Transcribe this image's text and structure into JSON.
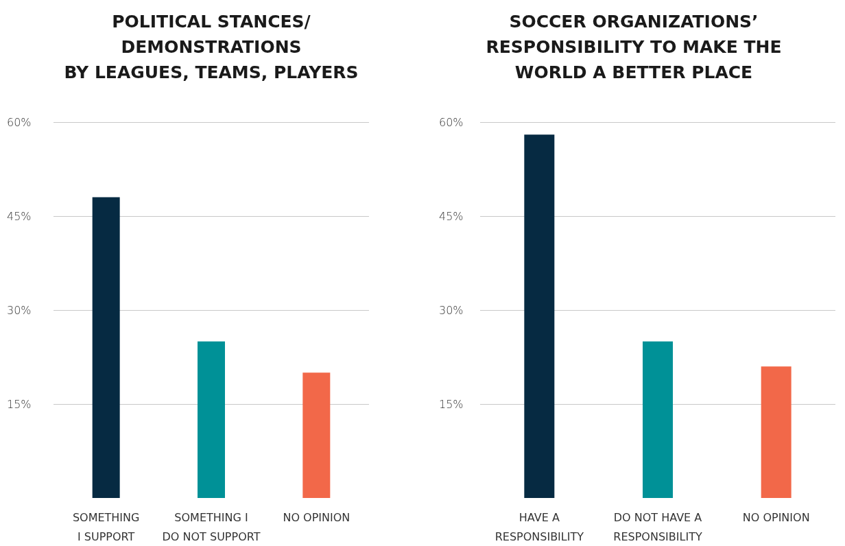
{
  "chart_data": [
    {
      "type": "bar",
      "title": "POLITICAL STANCES/\nDEMONSTRATIONS\nBY LEAGUES, TEAMS, PLAYERS",
      "categories": [
        "SOMETHING\nI SUPPORT",
        "SOMETHING I\nDO NOT SUPPORT",
        "NO OPINION"
      ],
      "values": [
        48,
        25,
        20
      ],
      "colors": [
        "#062a42",
        "#009197",
        "#f26849"
      ],
      "ylim": [
        0,
        60
      ],
      "yticks": [
        {
          "value": 15,
          "label": "15%"
        },
        {
          "value": 30,
          "label": "30%"
        },
        {
          "value": 45,
          "label": "45%"
        },
        {
          "value": 60,
          "label": "60%"
        }
      ],
      "grid": "y"
    },
    {
      "type": "bar",
      "title": "SOCCER ORGANIZATIONS’\nRESPONSIBILITY TO MAKE THE\nWORLD A BETTER PLACE",
      "categories": [
        "HAVE A\nRESPONSIBILITY",
        "DO NOT HAVE A\nRESPONSIBILITY",
        "NO OPINION"
      ],
      "values": [
        58,
        25,
        21
      ],
      "colors": [
        "#062a42",
        "#009197",
        "#f26849"
      ],
      "ylim": [
        0,
        60
      ],
      "yticks": [
        {
          "value": 15,
          "label": "15%"
        },
        {
          "value": 30,
          "label": "30%"
        },
        {
          "value": 45,
          "label": "45%"
        },
        {
          "value": 60,
          "label": "60%"
        }
      ],
      "grid": "y"
    }
  ]
}
